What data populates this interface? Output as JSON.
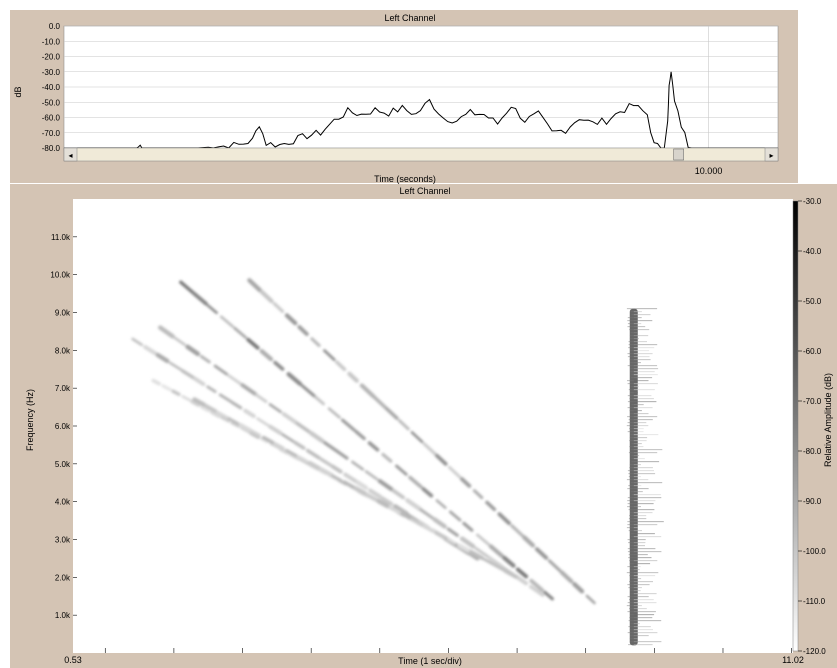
{
  "chart_data": [
    {
      "type": "line",
      "title": "Left Channel",
      "xlabel": "Time (seconds)",
      "ylabel": "dB",
      "ylim": [
        -80,
        0
      ],
      "yticks": [
        "0.0",
        "-10.0",
        "-20.0",
        "-30.0",
        "-40.0",
        "-50.0",
        "-60.0",
        "-70.0",
        "-80.0"
      ],
      "xticks": [
        "10.000"
      ],
      "xlim": [
        0.53,
        11.02
      ],
      "grid": true,
      "series": [
        {
          "x": [
            0.53,
            1.6,
            1.65,
            1.7,
            2.5,
            2.8,
            3.1,
            3.3,
            3.4,
            3.5,
            3.7,
            3.9,
            4.1,
            4.3,
            4.5,
            4.7,
            4.9,
            5.1,
            5.3,
            5.5,
            5.7,
            5.9,
            6.1,
            6.3,
            6.5,
            6.7,
            6.9,
            7.1,
            7.3,
            7.5,
            7.7,
            7.9,
            8.1,
            8.3,
            8.5,
            8.7,
            8.9,
            9.1,
            9.2,
            9.3,
            9.35,
            9.4,
            9.42,
            9.45,
            9.5,
            9.6,
            9.7,
            9.8,
            10.0,
            10.3,
            11.02
          ],
          "y": [
            -80,
            -80,
            -78.5,
            -80,
            -80,
            -79,
            -78,
            -75,
            -64,
            -77,
            -78,
            -75,
            -72,
            -70,
            -62,
            -56,
            -58,
            -55,
            -57,
            -54,
            -58,
            -49,
            -60,
            -62,
            -57,
            -58,
            -64,
            -52,
            -62,
            -58,
            -70,
            -68,
            -60,
            -64,
            -62,
            -56,
            -52,
            -58,
            -78,
            -80,
            -80,
            -60,
            -40,
            -30,
            -50,
            -65,
            -78,
            -80,
            -80,
            -80,
            -80
          ]
        }
      ],
      "scrollbar_position": 0.88
    },
    {
      "type": "heatmap",
      "title": "Left Channel",
      "xlabel": "Time (1 sec/div)",
      "ylabel": "Frequency (Hz)",
      "xlim": [
        0.53,
        11.02
      ],
      "x_tick_labels": [
        "0.53",
        "11.02"
      ],
      "ylim": [
        0,
        12000
      ],
      "yticks": [
        "1.0k",
        "2.0k",
        "3.0k",
        "4.0k",
        "5.0k",
        "6.0k",
        "7.0k",
        "8.0k",
        "9.0k",
        "10.0k",
        "11.0k"
      ],
      "colorbar_label": "Relative Amplitude (dB)",
      "colorbar_range": [
        -120,
        -30
      ],
      "colorbar_ticks": [
        "-30.0",
        "-40.0",
        "-50.0",
        "-60.0",
        "-70.0",
        "-80.0",
        "-90.0",
        "-100.0",
        "-110.0",
        "-120.0"
      ],
      "streaks": [
        {
          "x0": 3.1,
          "f0": 9850,
          "x1": 8.2,
          "f1": 1200,
          "intensity": 0.55
        },
        {
          "x0": 2.1,
          "f0": 9800,
          "x1": 7.6,
          "f1": 1300,
          "intensity": 0.65
        },
        {
          "x0": 1.8,
          "f0": 8600,
          "x1": 7.4,
          "f1": 1500,
          "intensity": 0.5
        },
        {
          "x0": 1.4,
          "f0": 8300,
          "x1": 6.5,
          "f1": 2400,
          "intensity": 0.4
        },
        {
          "x0": 1.7,
          "f0": 7200,
          "x1": 5.7,
          "f1": 3300,
          "intensity": 0.3
        },
        {
          "x0": 2.3,
          "f0": 6700,
          "x1": 7.0,
          "f1": 2000,
          "intensity": 0.35
        }
      ],
      "burst": {
        "x": 8.7,
        "f_min": 200,
        "f_max": 9100,
        "intensity": 0.75
      }
    }
  ]
}
